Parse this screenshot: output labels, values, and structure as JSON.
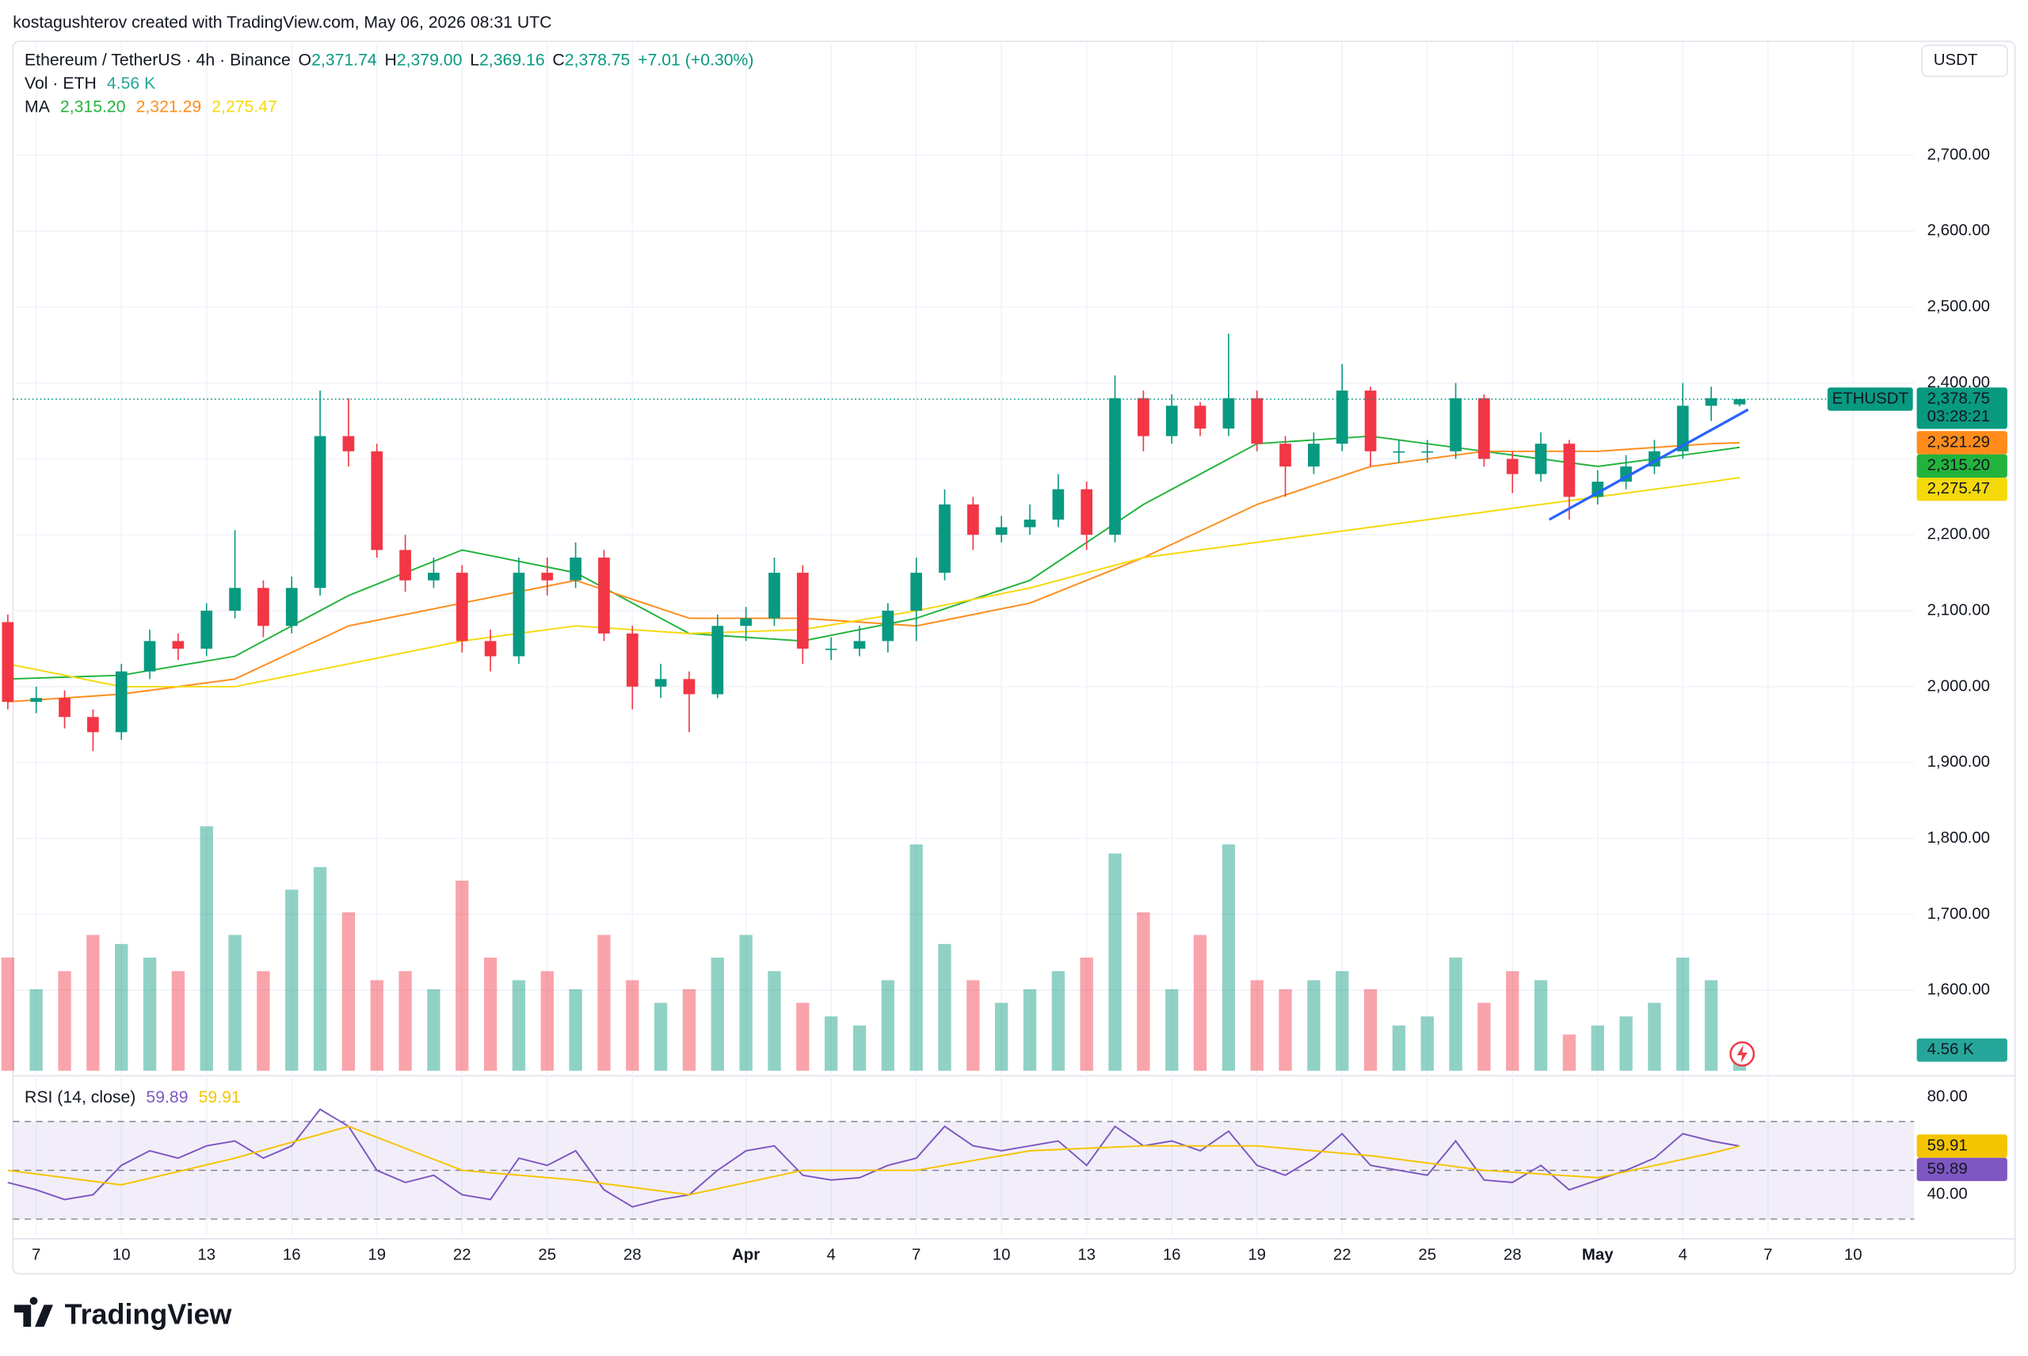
{
  "header": {
    "credit": "kostagushterov created with TradingView.com, May 06, 2026 08:31 UTC"
  },
  "chart_data": {
    "type": "candlestick",
    "currency": "USDT",
    "legend": {
      "title": "Ethereum / TetherUS · 4h · Binance",
      "ohlc": [
        {
          "key": "O",
          "value": "2,371.74"
        },
        {
          "key": "H",
          "value": "2,379.00"
        },
        {
          "key": "L",
          "value": "2,369.16"
        },
        {
          "key": "C",
          "value": "2,378.75"
        }
      ],
      "change": "+7.01 (+0.30%)"
    },
    "up_color": "#089981",
    "down_color": "#f23645",
    "x": [
      0,
      1,
      2,
      3,
      4,
      5,
      6,
      7,
      8,
      9,
      10,
      11,
      12,
      13,
      14,
      15,
      16,
      17,
      18,
      19,
      20,
      21,
      22,
      23,
      24,
      25,
      26,
      27,
      28,
      29,
      30,
      31,
      32,
      33,
      34,
      35,
      36,
      37,
      38,
      39,
      40,
      41,
      42,
      43,
      44,
      45,
      46,
      47,
      48,
      49,
      50,
      51,
      52,
      53,
      54,
      55,
      56,
      57,
      58,
      59,
      60,
      61
    ],
    "open": [
      2085,
      1980,
      1985,
      1960,
      1940,
      2020,
      2060,
      2050,
      2100,
      2130,
      2080,
      2130,
      2330,
      2310,
      2180,
      2140,
      2150,
      2060,
      2040,
      2150,
      2140,
      2170,
      2070,
      2000,
      2010,
      1990,
      2080,
      2090,
      2150,
      2050,
      2050,
      2060,
      2100,
      2150,
      2240,
      2200,
      2210,
      2220,
      2260,
      2200,
      2380,
      2330,
      2370,
      2340,
      2380,
      2320,
      2290,
      2320,
      2390,
      2310,
      2310,
      2310,
      2380,
      2300,
      2280,
      2320,
      2250,
      2270,
      2290,
      2310,
      2370,
      2371.74
    ],
    "high": [
      2095,
      2000,
      1995,
      1970,
      2030,
      2075,
      2070,
      2110,
      2206,
      2140,
      2145,
      2390,
      2380,
      2320,
      2200,
      2170,
      2160,
      2075,
      2170,
      2170,
      2190,
      2180,
      2080,
      2030,
      2020,
      2095,
      2105,
      2170,
      2160,
      2065,
      2080,
      2110,
      2170,
      2260,
      2250,
      2225,
      2240,
      2280,
      2270,
      2410,
      2390,
      2385,
      2375,
      2465,
      2390,
      2330,
      2335,
      2425,
      2395,
      2325,
      2325,
      2400,
      2385,
      2310,
      2335,
      2325,
      2285,
      2305,
      2325,
      2400,
      2395,
      2379
    ],
    "low": [
      1970,
      1965,
      1945,
      1915,
      1930,
      2010,
      2035,
      2040,
      2090,
      2065,
      2070,
      2120,
      2290,
      2170,
      2125,
      2130,
      2045,
      2020,
      2030,
      2120,
      2130,
      2060,
      1970,
      1985,
      1940,
      1985,
      2060,
      2080,
      2030,
      2035,
      2040,
      2045,
      2060,
      2140,
      2180,
      2190,
      2200,
      2210,
      2180,
      2190,
      2310,
      2320,
      2330,
      2330,
      2310,
      2250,
      2280,
      2310,
      2290,
      2295,
      2295,
      2300,
      2290,
      2255,
      2270,
      2220,
      2240,
      2260,
      2280,
      2300,
      2350,
      2369.16
    ],
    "close": [
      1980,
      1985,
      1960,
      1940,
      2020,
      2060,
      2050,
      2100,
      2130,
      2080,
      2130,
      2330,
      2310,
      2180,
      2140,
      2150,
      2060,
      2040,
      2150,
      2140,
      2170,
      2070,
      2000,
      2010,
      1990,
      2080,
      2090,
      2150,
      2050,
      2050,
      2060,
      2100,
      2150,
      2240,
      2200,
      2210,
      2220,
      2260,
      2200,
      2380,
      2330,
      2370,
      2340,
      2380,
      2320,
      2290,
      2320,
      2390,
      2310,
      2310,
      2310,
      2380,
      2300,
      2280,
      2320,
      2250,
      2270,
      2290,
      2310,
      2370,
      2380,
      2378.75
    ],
    "xlim": [
      0.18,
      67.15
    ],
    "xticks": [
      {
        "value": 1,
        "label": "7"
      },
      {
        "value": 4,
        "label": "10"
      },
      {
        "value": 7,
        "label": "13"
      },
      {
        "value": 10,
        "label": "16"
      },
      {
        "value": 13,
        "label": "19"
      },
      {
        "value": 16,
        "label": "22"
      },
      {
        "value": 19,
        "label": "25"
      },
      {
        "value": 22,
        "label": "28"
      },
      {
        "value": 26,
        "label": "Apr"
      },
      {
        "value": 29,
        "label": "4"
      },
      {
        "value": 32,
        "label": "7"
      },
      {
        "value": 35,
        "label": "10"
      },
      {
        "value": 38,
        "label": "13"
      },
      {
        "value": 41,
        "label": "16"
      },
      {
        "value": 44,
        "label": "19"
      },
      {
        "value": 47,
        "label": "22"
      },
      {
        "value": 50,
        "label": "25"
      },
      {
        "value": 53,
        "label": "28"
      },
      {
        "value": 56,
        "label": "May"
      },
      {
        "value": 59,
        "label": "4"
      },
      {
        "value": 62,
        "label": "7"
      },
      {
        "value": 65,
        "label": "10"
      }
    ],
    "ylim": [
      1494,
      2850
    ],
    "yticks": [
      {
        "value": 1600,
        "label": "1,600.00"
      },
      {
        "value": 1700,
        "label": "1,700.00"
      },
      {
        "value": 1800,
        "label": "1,800.00"
      },
      {
        "value": 1900,
        "label": "1,900.00"
      },
      {
        "value": 2000,
        "label": "2,000.00"
      },
      {
        "value": 2100,
        "label": "2,100.00"
      },
      {
        "value": 2200,
        "label": "2,200.00"
      },
      {
        "value": 2300,
        "label": "2,300.00"
      },
      {
        "value": 2400,
        "label": "2,400.00"
      },
      {
        "value": 2500,
        "label": "2,500.00"
      },
      {
        "value": 2600,
        "label": "2,600.00"
      },
      {
        "value": 2700,
        "label": "2,700.00"
      }
    ],
    "grid": true,
    "price_line": {
      "value": 2378.75,
      "label": "2,378.75",
      "symbol": "ETHUSDT",
      "countdown": "03:28:21"
    },
    "ma_label": "MA",
    "ma": [
      {
        "color": "#22b33c",
        "tag_text": "#ffffff",
        "value_label": "2,315.20",
        "x": [
          0,
          4,
          8,
          12,
          16,
          20,
          24,
          28,
          32,
          36,
          40,
          44,
          48,
          52,
          56,
          60,
          61
        ],
        "values": [
          2010,
          2015,
          2040,
          2120,
          2180,
          2150,
          2070,
          2060,
          2090,
          2140,
          2240,
          2320,
          2330,
          2310,
          2290,
          2310,
          2315.2
        ]
      },
      {
        "color": "#ff8c1a",
        "tag_text": "#ffffff",
        "value_label": "2,321.29",
        "x": [
          0,
          4,
          8,
          12,
          16,
          20,
          24,
          28,
          32,
          36,
          40,
          44,
          48,
          52,
          56,
          60,
          61
        ],
        "values": [
          1980,
          1990,
          2010,
          2080,
          2110,
          2140,
          2090,
          2090,
          2080,
          2110,
          2170,
          2240,
          2290,
          2310,
          2310,
          2320,
          2321.29
        ]
      },
      {
        "color": "#f5d90a",
        "tag_text": "#131722",
        "value_label": "2,275.47",
        "x": [
          0,
          4,
          8,
          12,
          16,
          20,
          24,
          28,
          32,
          36,
          40,
          44,
          48,
          52,
          56,
          60,
          61
        ],
        "values": [
          2030,
          2000,
          2000,
          2030,
          2060,
          2080,
          2070,
          2075,
          2100,
          2130,
          2170,
          2190,
          2210,
          2230,
          2250,
          2270,
          2275.47
        ]
      }
    ],
    "trendline": {
      "color": "#2962ff",
      "x": [
        54.3,
        61.3
      ],
      "values": [
        2220,
        2365
      ]
    },
    "volume": {
      "label": "Vol · ETH",
      "value_label": "4.56 K",
      "ylim": [
        0,
        60
      ],
      "color": "#26a69a",
      "values": [
        25,
        18,
        22,
        30,
        28,
        25,
        22,
        54,
        30,
        22,
        40,
        45,
        35,
        20,
        22,
        18,
        42,
        25,
        20,
        22,
        18,
        30,
        20,
        15,
        18,
        25,
        30,
        22,
        15,
        12,
        10,
        20,
        50,
        28,
        20,
        15,
        18,
        22,
        25,
        48,
        35,
        18,
        30,
        50,
        20,
        18,
        20,
        22,
        18,
        10,
        12,
        25,
        15,
        22,
        20,
        8,
        10,
        12,
        15,
        25,
        20,
        4.56
      ]
    },
    "rsi": {
      "label": "RSI (14, close)",
      "color": "#7e57c2",
      "value_label": "59.89",
      "values": [
        45,
        42,
        38,
        40,
        52,
        58,
        55,
        60,
        62,
        55,
        60,
        75,
        68,
        50,
        45,
        48,
        40,
        38,
        55,
        52,
        58,
        42,
        35,
        38,
        40,
        50,
        58,
        60,
        48,
        46,
        47,
        52,
        55,
        68,
        60,
        58,
        60,
        62,
        52,
        68,
        60,
        62,
        58,
        66,
        52,
        48,
        55,
        65,
        52,
        50,
        48,
        62,
        46,
        45,
        52,
        42,
        46,
        50,
        55,
        65,
        62,
        59.89
      ],
      "ylim": [
        23.5,
        85.5
      ],
      "yticks": [
        {
          "value": 40,
          "label": "40.00"
        },
        {
          "value": 80,
          "label": "80.00"
        }
      ],
      "levels": [
        30,
        50,
        70
      ],
      "band": [
        30,
        70
      ],
      "ma": {
        "color": "#f5c400",
        "value_label": "59.91",
        "x": [
          0,
          4,
          8,
          12,
          16,
          20,
          24,
          28,
          32,
          36,
          40,
          44,
          48,
          52,
          56,
          60,
          61
        ],
        "values": [
          50,
          44,
          55,
          68,
          50,
          46,
          40,
          50,
          50,
          58,
          60,
          60,
          56,
          50,
          47,
          57,
          59.91
        ]
      }
    }
  },
  "footer": {
    "brand": "TradingView"
  }
}
